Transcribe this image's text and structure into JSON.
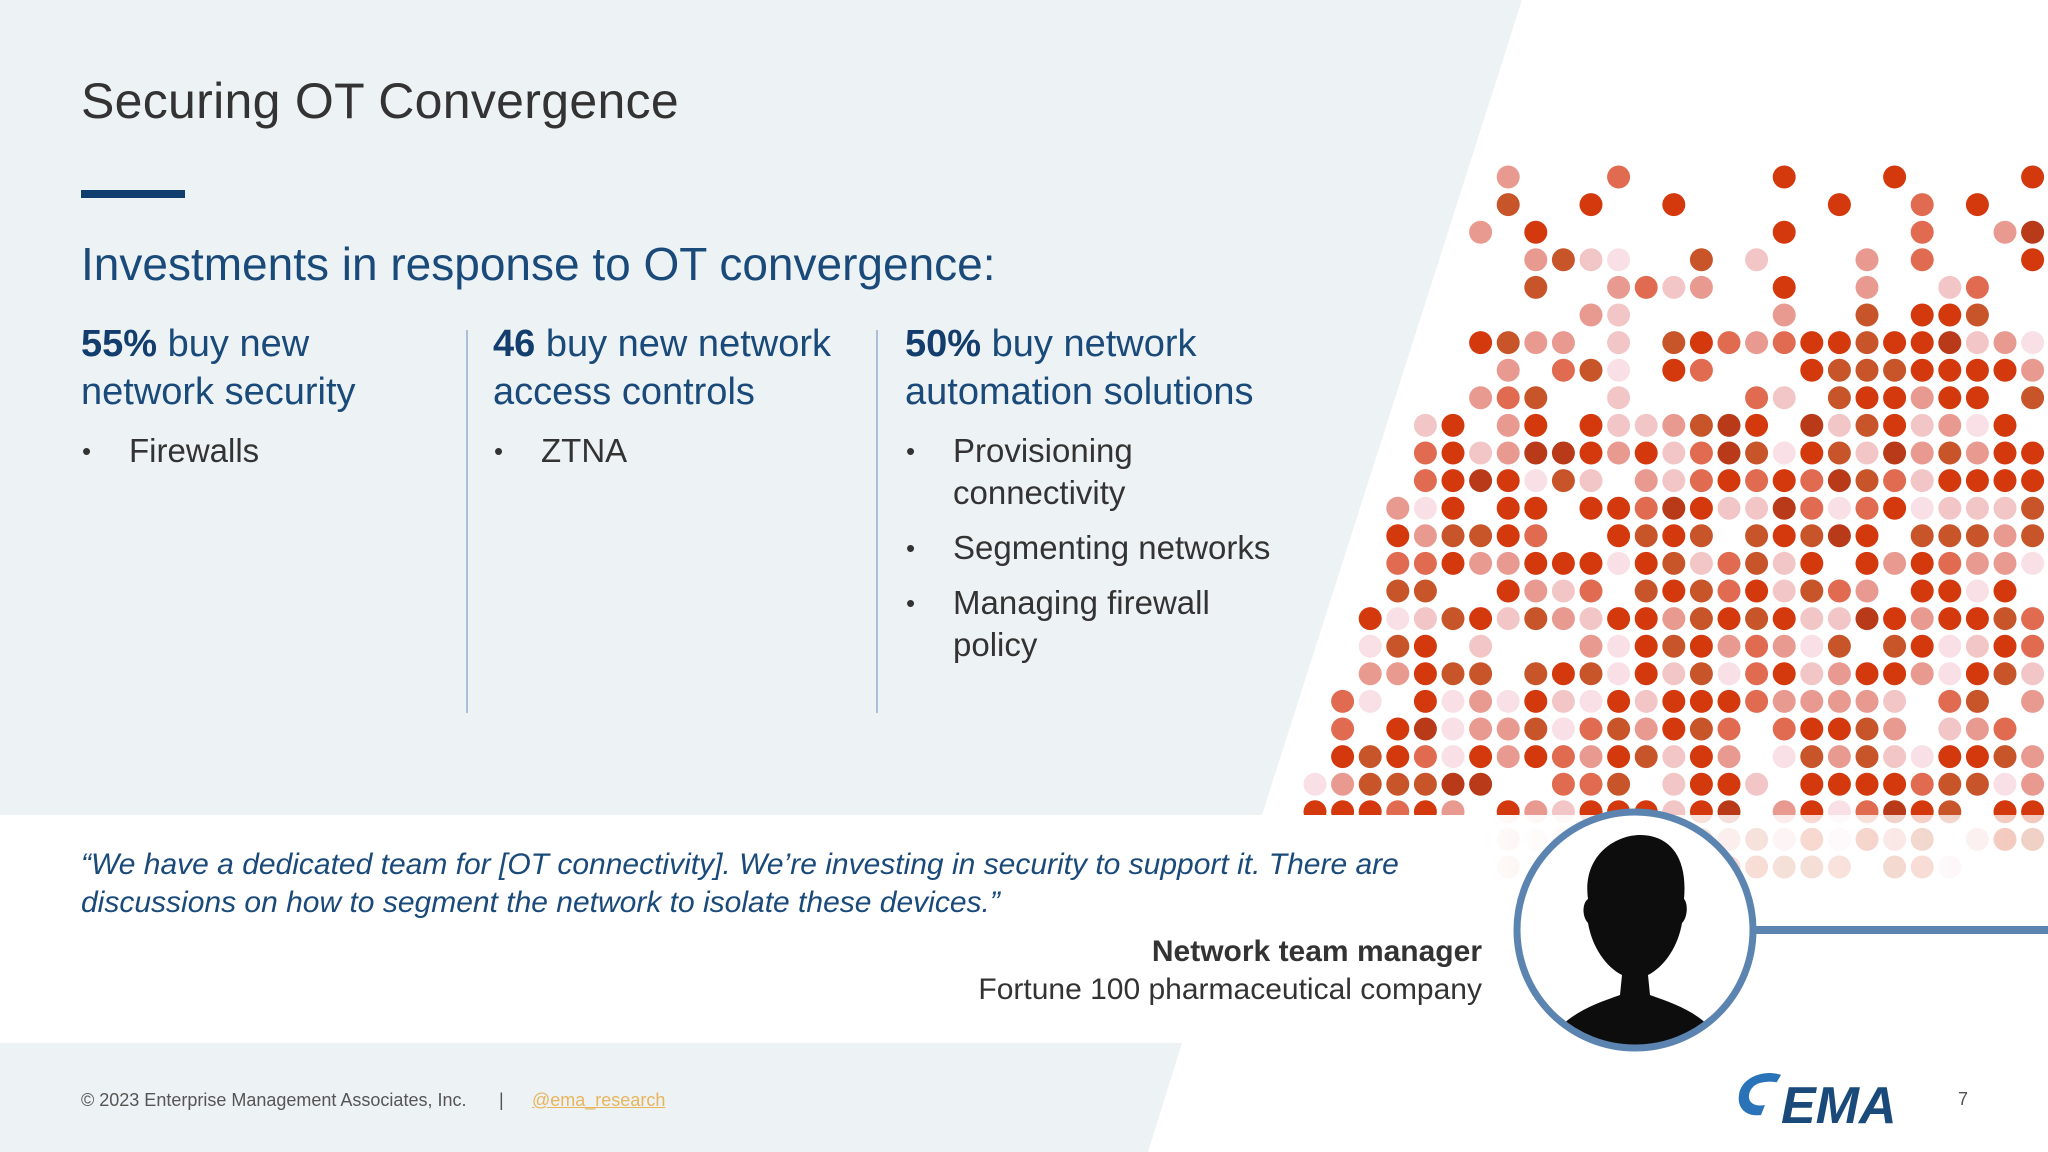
{
  "slide": {
    "title": "Securing OT Convergence",
    "subtitle": "Investments in response to OT convergence:",
    "page_number": "7"
  },
  "columns": [
    {
      "stat": "55%",
      "heading_rest": " buy new network security",
      "bullets": [
        "Firewalls"
      ]
    },
    {
      "stat": "46",
      "heading_rest": " buy new network access controls",
      "bullets": [
        "ZTNA"
      ]
    },
    {
      "stat": "50%",
      "heading_rest": " buy network automation solutions",
      "bullets": [
        "Provisioning connectivity",
        "Segmenting networks",
        "Managing firewall policy"
      ]
    }
  ],
  "quote": {
    "text": "“We have a dedicated team for [OT connectivity]. We’re investing in security to support it. There are discussions on how to segment the network to isolate these devices.”",
    "attribution_name": "Network team manager",
    "attribution_org": "Fortune 100 pharmaceutical company"
  },
  "footer": {
    "copyright": "© 2023 Enterprise Management Associates, Inc.",
    "separator": "|",
    "handle": "@ema_research"
  },
  "logo": {
    "text": "EMA",
    "icon": "ema-logo-icon"
  },
  "colors": {
    "background_panel": "#edf2f4",
    "navy": "#0f3d6e",
    "heading_blue": "#1a4a7a",
    "avatar_ring": "#5b84b1",
    "dot_palette": [
      "#d4380d",
      "#c8552a",
      "#e06b50",
      "#e89a90",
      "#f2c6c6",
      "#f8e0e6",
      "#b83a18"
    ]
  }
}
